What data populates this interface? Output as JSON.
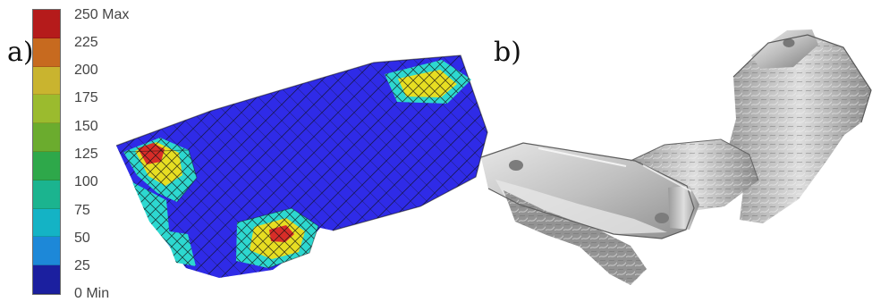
{
  "figure": {
    "panel_a_label": "a)",
    "panel_b_label": "b)"
  },
  "legend": {
    "ticks": [
      {
        "label": "250 Max",
        "color": "#b51b1b"
      },
      {
        "label": "225",
        "color": "#c76a1f"
      },
      {
        "label": "200",
        "color": "#c9b42f"
      },
      {
        "label": "175",
        "color": "#9bbb2e"
      },
      {
        "label": "150",
        "color": "#6bac2e"
      },
      {
        "label": "125",
        "color": "#2ea84a"
      },
      {
        "label": "100",
        "color": "#1bb48f"
      },
      {
        "label": "75",
        "color": "#14b3c5"
      },
      {
        "label": "50",
        "color": "#1d88d8"
      },
      {
        "label": "25",
        "color": "#2d4ec7"
      },
      {
        "label": "0 Min",
        "color": "#1b1f9f"
      }
    ]
  },
  "colors": {
    "mesh_blue": "#2f2be7",
    "mesh_cyan": "#2dd8d0",
    "mesh_yellow": "#e7de22",
    "mesh_red": "#d82d28",
    "gray_light": "#c9c9c9",
    "gray_mid": "#9b9b9b",
    "gray_dark": "#6f6f6f"
  },
  "icons": {
    "panel_a": "fea-mesh-illustration",
    "panel_b": "metal-bracket-render"
  }
}
